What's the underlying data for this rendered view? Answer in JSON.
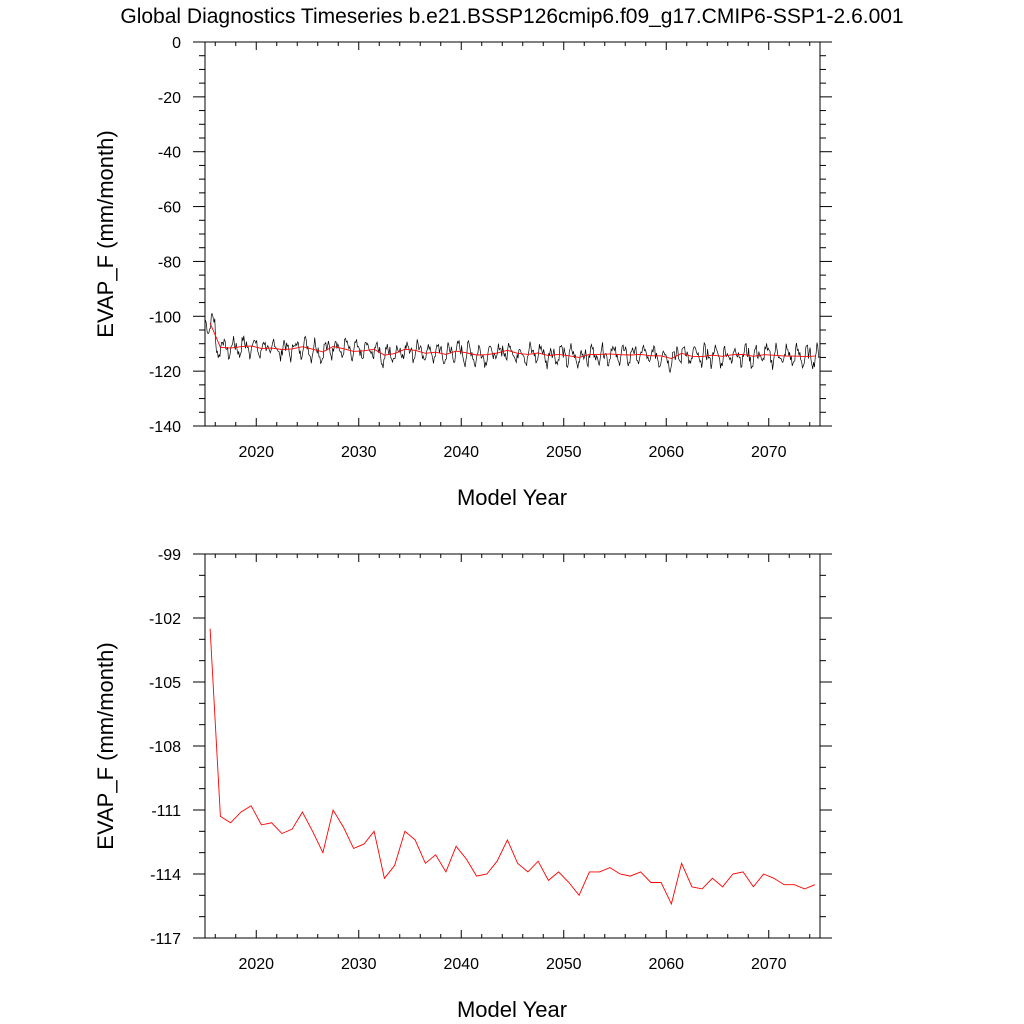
{
  "title": "Global Diagnostics Timeseries b.e21.BSSP126cmip6.f09_g17.CMIP6-SSP1-2.6.001",
  "colors": {
    "monthly": "#000000",
    "annual": "#ff0000"
  },
  "chart_data": [
    {
      "type": "line",
      "xlabel": "Model Year",
      "ylabel": "EVAP_F (mm/month)",
      "xlim": [
        2015,
        2075
      ],
      "ylim": [
        -140,
        0
      ],
      "xticks": [
        2020,
        2030,
        2040,
        2050,
        2060,
        2070
      ],
      "yticks": [
        0,
        -20,
        -40,
        -60,
        -80,
        -100,
        -120,
        -140
      ],
      "grid": false,
      "series": [
        {
          "style": "monthly",
          "x_start": 2015.04,
          "x_step": 0.08333,
          "seasonal_cycle": [
            -110.5,
            -111.5,
            -112.5,
            -113.5,
            -114,
            -113,
            -111.5,
            -110,
            -109,
            -109.5,
            -110.5,
            -111
          ],
          "note_values": "monthly EVAP_F oscillating between about -107 and -120, annual mean as listed in annual series"
        },
        {
          "style": "annual",
          "x": [
            2015.5,
            2016.5,
            2017.5,
            2018.5,
            2019.5,
            2020.5,
            2021.5,
            2022.5,
            2023.5,
            2024.5,
            2025.5,
            2026.5,
            2027.5,
            2028.5,
            2029.5,
            2030.5,
            2031.5,
            2032.5,
            2033.5,
            2034.5,
            2035.5,
            2036.5,
            2037.5,
            2038.5,
            2039.5,
            2040.5,
            2041.5,
            2042.5,
            2043.5,
            2044.5,
            2045.5,
            2046.5,
            2047.5,
            2048.5,
            2049.5,
            2050.5,
            2051.5,
            2052.5,
            2053.5,
            2054.5,
            2055.5,
            2056.5,
            2057.5,
            2058.5,
            2059.5,
            2060.5,
            2061.5,
            2062.5,
            2063.5,
            2064.5,
            2065.5,
            2066.5,
            2067.5,
            2068.5,
            2069.5,
            2070.5,
            2071.5,
            2072.5,
            2073.5,
            2074.5
          ],
          "values": [
            -102.5,
            -111.3,
            -111.6,
            -111.1,
            -110.8,
            -111.7,
            -111.6,
            -112.1,
            -111.9,
            -111.1,
            -112.0,
            -113.0,
            -111.0,
            -111.8,
            -112.8,
            -112.6,
            -112.0,
            -114.2,
            -113.6,
            -112.0,
            -112.4,
            -113.5,
            -113.1,
            -113.9,
            -112.7,
            -113.3,
            -114.1,
            -114.0,
            -113.4,
            -112.4,
            -113.5,
            -113.9,
            -113.4,
            -114.3,
            -113.9,
            -114.4,
            -115.0,
            -113.9,
            -113.9,
            -113.7,
            -114.0,
            -114.1,
            -113.9,
            -114.4,
            -114.4,
            -115.4,
            -113.5,
            -114.6,
            -114.7,
            -114.2,
            -114.6,
            -114.0,
            -113.9,
            -114.6,
            -114.0,
            -114.2,
            -114.5,
            -114.5,
            -114.7,
            -114.5
          ]
        }
      ],
      "monthly_values_by_year": [
        -110.8,
        -111.9,
        -109.3,
        -109.4,
        -110.6,
        -106.4,
        -104.9,
        -106.7,
        -107.4,
        -108.2,
        -110.9,
        -113.8
      ]
    },
    {
      "type": "line",
      "xlabel": "Model Year",
      "ylabel": "EVAP_F (mm/month)",
      "xlim": [
        2015,
        2075
      ],
      "ylim": [
        -117,
        -99
      ],
      "xticks": [
        2020,
        2030,
        2040,
        2050,
        2060,
        2070
      ],
      "yticks": [
        -99,
        -102,
        -105,
        -108,
        -111,
        -114,
        -117
      ],
      "grid": false,
      "series": [
        {
          "style": "annual",
          "ref": "annual"
        }
      ]
    }
  ]
}
